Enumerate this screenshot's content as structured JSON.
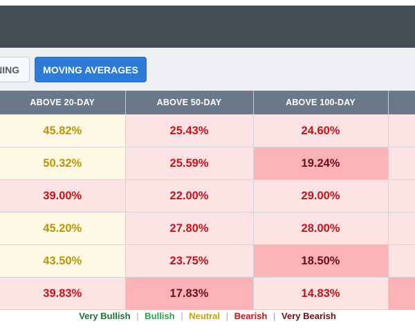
{
  "tabs": {
    "screening_label": "SCREENING",
    "moving_averages_label": "MOVING AVERAGES"
  },
  "table": {
    "headers": [
      "ABOVE 20-DAY",
      "ABOVE 50-DAY",
      "ABOVE 100-DAY",
      ""
    ],
    "rows": [
      {
        "cells": [
          {
            "value": "45.82%",
            "status": "neutral"
          },
          {
            "value": "25.43%",
            "status": "bearish"
          },
          {
            "value": "24.60%",
            "status": "bearish"
          },
          {
            "value": "",
            "status": "bearish"
          }
        ]
      },
      {
        "cells": [
          {
            "value": "50.32%",
            "status": "neutral"
          },
          {
            "value": "25.59%",
            "status": "bearish"
          },
          {
            "value": "19.24%",
            "status": "verybearish"
          },
          {
            "value": "",
            "status": "bearish"
          }
        ]
      },
      {
        "cells": [
          {
            "value": "39.00%",
            "status": "bearish"
          },
          {
            "value": "22.00%",
            "status": "bearish"
          },
          {
            "value": "29.00%",
            "status": "bearish"
          },
          {
            "value": "",
            "status": "bearish"
          }
        ]
      },
      {
        "cells": [
          {
            "value": "45.20%",
            "status": "neutral"
          },
          {
            "value": "27.80%",
            "status": "bearish"
          },
          {
            "value": "28.00%",
            "status": "bearish"
          },
          {
            "value": "",
            "status": "bearish"
          }
        ]
      },
      {
        "cells": [
          {
            "value": "43.50%",
            "status": "neutral"
          },
          {
            "value": "23.75%",
            "status": "bearish"
          },
          {
            "value": "18.50%",
            "status": "verybearish"
          },
          {
            "value": "",
            "status": "bearish"
          }
        ]
      },
      {
        "cells": [
          {
            "value": "39.83%",
            "status": "bearish"
          },
          {
            "value": "17.83%",
            "status": "verybearish"
          },
          {
            "value": "14.83%",
            "status": "bearish"
          },
          {
            "value": "",
            "status": "verybearish"
          }
        ]
      }
    ]
  },
  "legend": {
    "very_bullish": "Very Bullish",
    "bullish": "Bullish",
    "neutral": "Neutral",
    "bearish": "Bearish",
    "very_bearish": "Very Bearish",
    "separator": "|"
  },
  "colors": {
    "header_bg": "#6b7889",
    "neutral_bg": "#fff8e5",
    "neutral_text": "#b8960a",
    "bearish_bg": "#fde2e4",
    "bearish_text": "#c4121a",
    "very_bearish_bg": "#fbb3b7",
    "very_bearish_text": "#6b0f14",
    "accent": "#2d7bd6"
  }
}
